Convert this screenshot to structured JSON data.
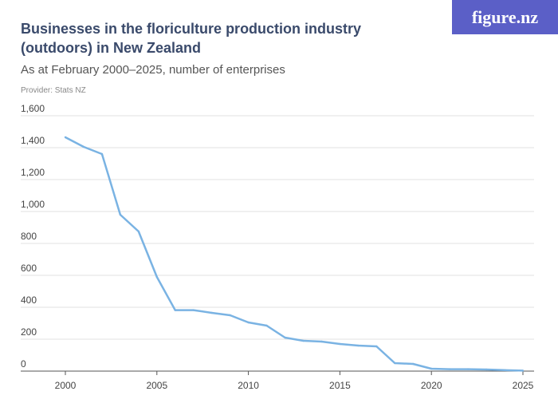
{
  "header": {
    "title": "Businesses in the floriculture production industry (outdoors) in New Zealand",
    "subtitle": "As at February 2000–2025, number of enterprises",
    "provider": "Provider: Stats NZ",
    "logo": "figure.nz"
  },
  "chart_data": {
    "type": "line",
    "title": "Businesses in the floriculture production industry (outdoors) in New Zealand",
    "xlim": [
      2000,
      2025
    ],
    "ylim": [
      0,
      1600
    ],
    "grid": true,
    "xticks": [
      2000,
      2005,
      2010,
      2015,
      2020,
      2025
    ],
    "yticks": [
      0,
      200,
      400,
      600,
      800,
      1000,
      1200,
      1400,
      1600
    ],
    "ytick_labels": [
      "0",
      "200",
      "400",
      "600",
      "800",
      "1,000",
      "1,200",
      "1,400",
      "1,600"
    ],
    "color": "#7ab3e3",
    "x": [
      2000,
      2001,
      2002,
      2003,
      2004,
      2005,
      2006,
      2007,
      2008,
      2009,
      2010,
      2011,
      2012,
      2013,
      2014,
      2015,
      2016,
      2017,
      2018,
      2019,
      2020,
      2021,
      2022,
      2023,
      2024,
      2025
    ],
    "y": [
      1465,
      1405,
      1360,
      980,
      875,
      590,
      382,
      382,
      365,
      350,
      305,
      285,
      210,
      190,
      185,
      170,
      160,
      155,
      50,
      45,
      15,
      12,
      12,
      10,
      6,
      3
    ]
  }
}
